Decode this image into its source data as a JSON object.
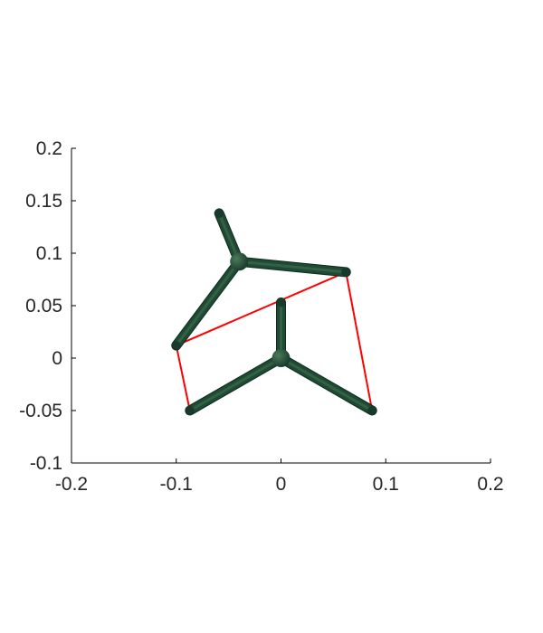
{
  "chart_data": {
    "type": "line",
    "title": "",
    "xlabel": "",
    "ylabel": "",
    "xlim": [
      -0.2,
      0.2
    ],
    "ylim": [
      -0.1,
      0.2
    ],
    "x_ticks": [
      -0.2,
      -0.1,
      0,
      0.1,
      0.2
    ],
    "x_tick_labels": [
      "-0.2",
      "-0.1",
      "0",
      "0.1",
      "0.2"
    ],
    "y_ticks": [
      -0.1,
      -0.05,
      0,
      0.05,
      0.1,
      0.15,
      0.2
    ],
    "y_tick_labels": [
      "-0.1",
      "-0.05",
      "0",
      "0.05",
      "0.1",
      "0.15",
      "0.2"
    ],
    "grid": false,
    "series": [
      {
        "kind": "rod-assembly",
        "color": "#1f4a34",
        "hub": [
          0.0,
          0.0
        ],
        "arms": [
          [
            -0.087,
            -0.05
          ],
          [
            0.087,
            -0.05
          ],
          [
            0.0,
            0.053
          ]
        ]
      },
      {
        "kind": "rod-assembly",
        "color": "#1f4a34",
        "hub": [
          -0.04,
          0.092
        ],
        "arms": [
          [
            -0.1,
            0.012
          ],
          [
            0.062,
            0.082
          ],
          [
            -0.059,
            0.138
          ]
        ]
      },
      {
        "kind": "connector-lines",
        "color": "#ff0000",
        "segments": [
          [
            [
              -0.1,
              0.012
            ],
            [
              -0.087,
              -0.05
            ]
          ],
          [
            [
              -0.1,
              0.012
            ],
            [
              0.062,
              0.082
            ]
          ],
          [
            [
              0.062,
              0.082
            ],
            [
              0.087,
              -0.05
            ]
          ]
        ]
      }
    ]
  }
}
